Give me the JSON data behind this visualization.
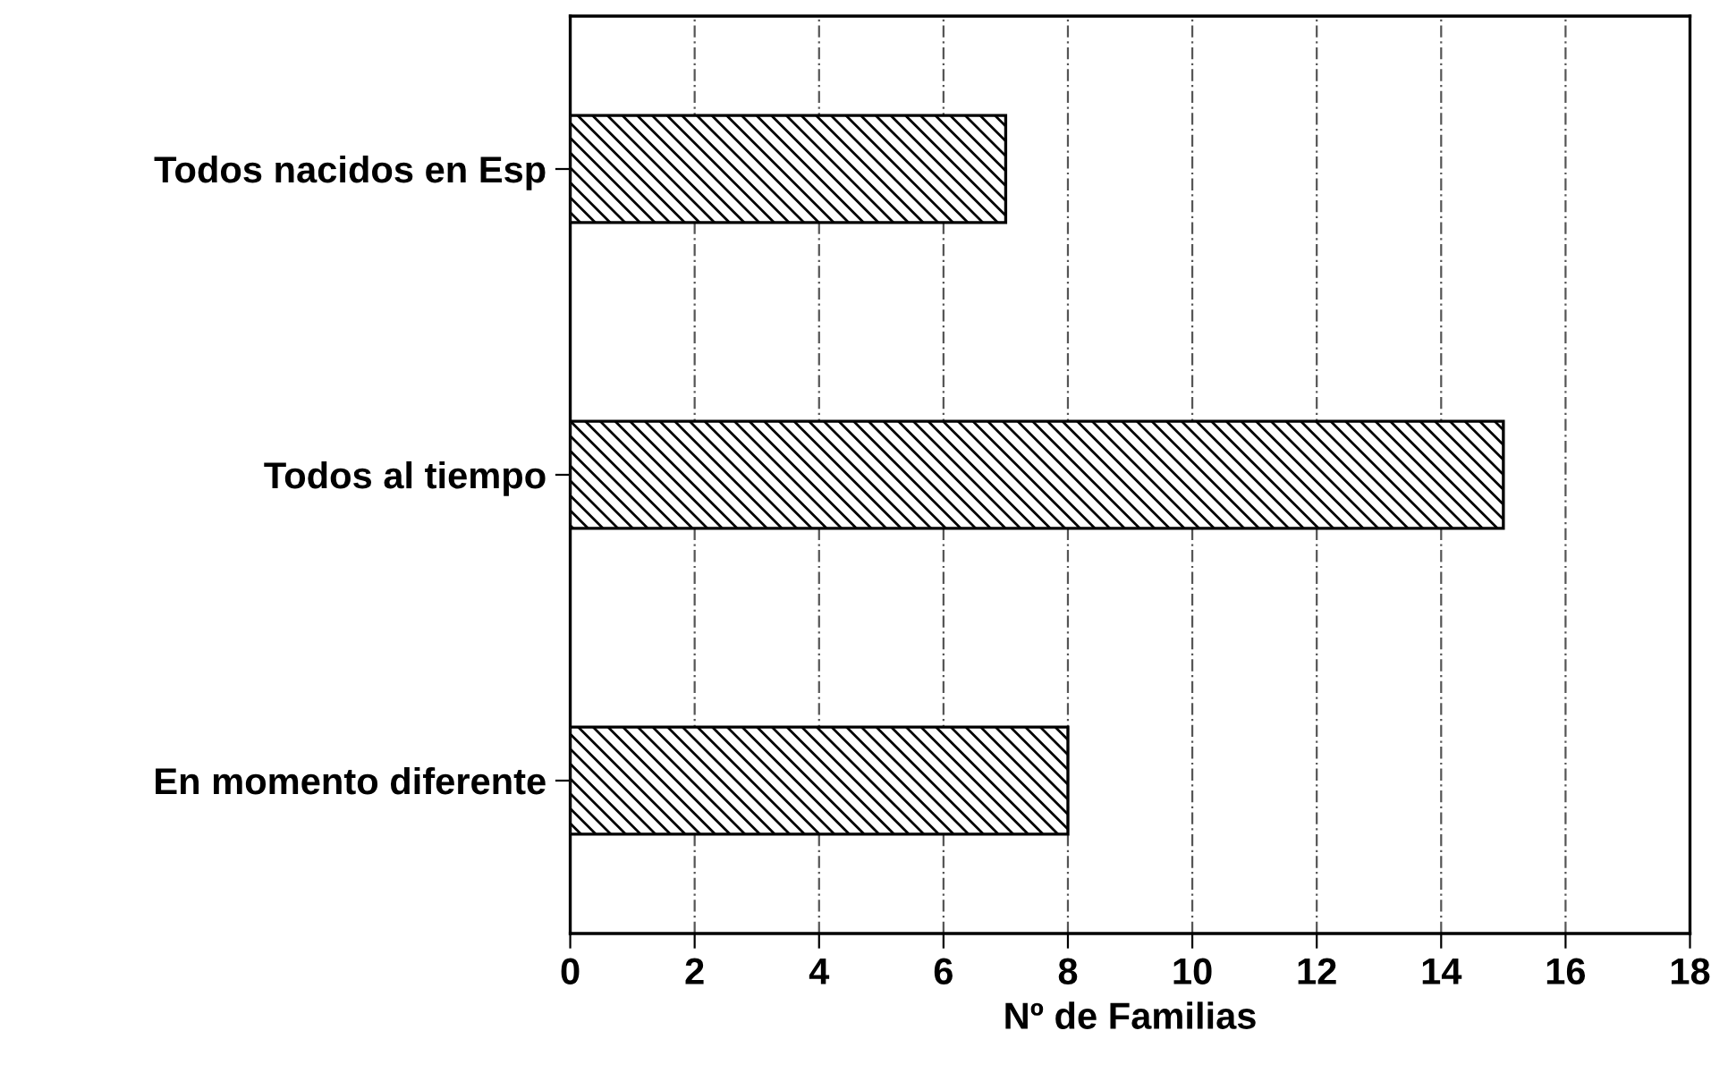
{
  "chart_data": {
    "type": "bar",
    "orientation": "horizontal",
    "xlabel": "Nº de Familias",
    "categories": [
      "Todos nacidos en Esp",
      "Todos al tiempo",
      "En momento diferente"
    ],
    "values": [
      7,
      15,
      8
    ],
    "color": "#000000",
    "xlim": [
      0,
      18
    ],
    "xticks": [
      0,
      2,
      4,
      6,
      8,
      10,
      12,
      14,
      16,
      18
    ],
    "grid": "x",
    "legend": false
  }
}
